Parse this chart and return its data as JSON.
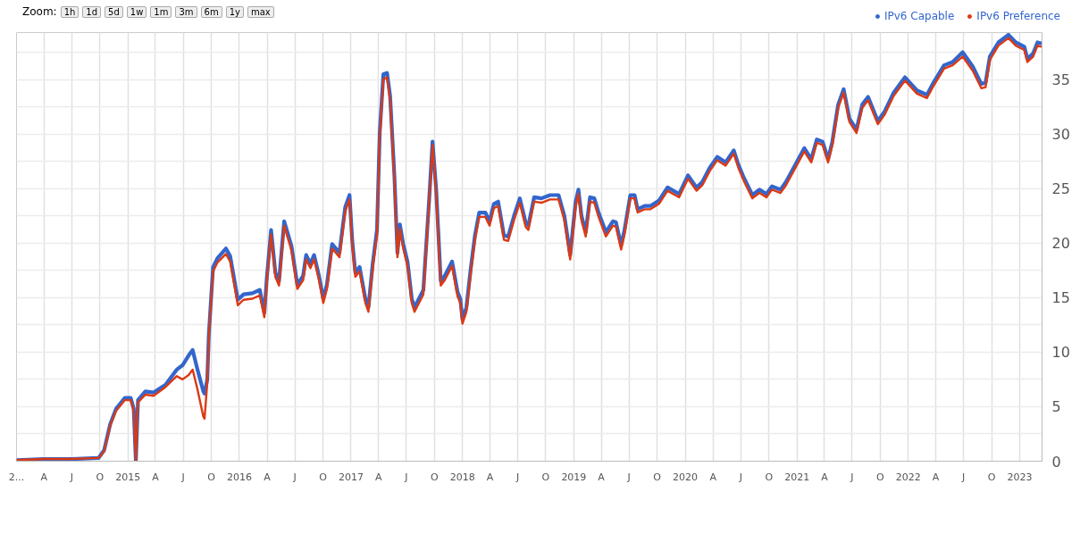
{
  "chart_data": {
    "type": "line",
    "annotations": [
      "Zoom:",
      "1h",
      "1d",
      "5d",
      "1w",
      "1m",
      "3m",
      "6m",
      "1y",
      "max"
    ],
    "x": [
      "2014-01-01",
      "2014-04-01",
      "2014-07-01",
      "2014-09-27",
      "2014-10-15",
      "2014-11-04",
      "2014-11-23",
      "2014-12-22",
      "2015-01-10",
      "2015-01-20",
      "2015-01-27",
      "2015-02-03",
      "2015-02-27",
      "2015-03-26",
      "2015-05-04",
      "2015-06-10",
      "2015-06-29",
      "2015-07-19",
      "2015-08-01",
      "2015-08-16",
      "2015-09-05",
      "2015-09-09",
      "2015-09-18",
      "2015-09-23",
      "2015-10-07",
      "2015-10-21",
      "2015-11-18",
      "2015-12-02",
      "2015-12-27",
      "2016-01-15",
      "2016-02-13",
      "2016-03-08",
      "2016-03-23",
      "2016-03-31",
      "2016-04-14",
      "2016-04-28",
      "2016-05-10",
      "2016-05-27",
      "2016-06-20",
      "2016-07-09",
      "2016-07-28",
      "2016-08-07",
      "2016-08-21",
      "2016-09-02",
      "2016-09-18",
      "2016-10-02",
      "2016-10-14",
      "2016-10-31",
      "2016-11-24",
      "2016-12-13",
      "2016-12-27",
      "2017-01-05",
      "2017-01-15",
      "2017-01-29",
      "2017-02-17",
      "2017-02-27",
      "2017-03-13",
      "2017-03-27",
      "2017-04-05",
      "2017-04-17",
      "2017-04-29",
      "2017-05-09",
      "2017-05-23",
      "2017-06-02",
      "2017-06-10",
      "2017-06-21",
      "2017-07-05",
      "2017-07-19",
      "2017-07-28",
      "2017-08-26",
      "2017-09-14",
      "2017-09-25",
      "2017-10-07",
      "2017-10-22",
      "2017-11-04",
      "2017-11-28",
      "2017-12-16",
      "2017-12-25",
      "2018-01-01",
      "2018-01-14",
      "2018-01-28",
      "2018-02-11",
      "2018-02-25",
      "2018-03-17",
      "2018-03-31",
      "2018-04-14",
      "2018-04-28",
      "2018-05-17",
      "2018-05-31",
      "2018-06-19",
      "2018-07-08",
      "2018-07-27",
      "2018-08-05",
      "2018-08-24",
      "2018-09-17",
      "2018-10-15",
      "2018-11-12",
      "2018-12-01",
      "2018-12-20",
      "2019-01-07",
      "2019-01-16",
      "2019-01-26",
      "2019-02-09",
      "2019-02-23",
      "2019-03-09",
      "2019-03-23",
      "2019-04-16",
      "2019-05-09",
      "2019-05-19",
      "2019-06-05",
      "2019-06-16",
      "2019-07-05",
      "2019-07-19",
      "2019-07-29",
      "2019-08-21",
      "2019-09-09",
      "2019-10-07",
      "2019-11-04",
      "2019-12-12",
      "2020-01-10",
      "2020-02-07",
      "2020-02-26",
      "2020-03-21",
      "2020-04-15",
      "2020-05-12",
      "2020-06-08",
      "2020-06-23",
      "2020-07-11",
      "2020-08-08",
      "2020-08-31",
      "2020-09-23",
      "2020-10-11",
      "2020-11-08",
      "2020-11-26",
      "2021-01-02",
      "2021-01-25",
      "2021-02-17",
      "2021-03-07",
      "2021-03-26",
      "2021-04-13",
      "2021-04-27",
      "2021-05-16",
      "2021-06-03",
      "2021-06-22",
      "2021-07-15",
      "2021-08-03",
      "2021-08-22",
      "2021-09-23",
      "2021-10-16",
      "2021-11-14",
      "2021-12-21",
      "2022-01-29",
      "2022-03-03",
      "2022-03-22",
      "2022-04-28",
      "2022-05-26",
      "2022-06-28",
      "2022-07-31",
      "2022-08-28",
      "2022-09-11",
      "2022-09-25",
      "2022-10-23",
      "2022-11-25",
      "2022-12-19",
      "2023-01-16",
      "2023-01-26",
      "2023-02-14",
      "2023-02-28",
      "2023-03-14"
    ],
    "series": [
      {
        "name": "IPv6 Capable",
        "color": "#3366cc",
        "values": [
          0.1,
          0.2,
          0.2,
          0.3,
          1.0,
          3.4,
          4.8,
          5.8,
          5.8,
          4.8,
          0,
          5.6,
          6.4,
          6.3,
          7.0,
          8.4,
          8.8,
          9.7,
          10.2,
          8.5,
          6.4,
          6.2,
          7.5,
          11.6,
          17.8,
          18.6,
          19.5,
          18.8,
          14.8,
          15.3,
          15.4,
          15.7,
          13.6,
          16.8,
          21.2,
          17.3,
          16.5,
          22.0,
          19.7,
          16.2,
          17.0,
          18.9,
          18.1,
          18.9,
          17.0,
          14.9,
          16.2,
          19.9,
          19.1,
          23.3,
          24.4,
          20.2,
          17.3,
          17.8,
          14.9,
          14.1,
          18.1,
          21.2,
          30.1,
          35.5,
          35.6,
          33.5,
          26.2,
          19.1,
          21.7,
          19.9,
          18.3,
          14.9,
          14.1,
          15.7,
          24.0,
          29.3,
          24.9,
          16.5,
          17.0,
          18.3,
          15.5,
          14.9,
          13.0,
          14.1,
          17.6,
          20.7,
          22.8,
          22.8,
          22.0,
          23.6,
          23.8,
          20.7,
          20.6,
          22.5,
          24.1,
          21.9,
          21.6,
          24.2,
          24.1,
          24.4,
          24.4,
          22.5,
          18.9,
          23.8,
          24.9,
          22.5,
          21.0,
          24.2,
          24.1,
          22.8,
          21.0,
          22.0,
          21.9,
          19.8,
          21.2,
          24.4,
          24.4,
          23.1,
          23.4,
          23.4,
          23.9,
          25.1,
          24.5,
          26.2,
          25.1,
          25.6,
          26.9,
          27.9,
          27.4,
          28.5,
          27.2,
          26.0,
          24.4,
          24.9,
          24.5,
          25.2,
          24.9,
          25.6,
          27.5,
          28.7,
          27.7,
          29.5,
          29.3,
          27.7,
          29.3,
          32.7,
          34.1,
          31.4,
          30.4,
          32.7,
          33.4,
          31.2,
          32.1,
          33.8,
          35.2,
          34.0,
          33.6,
          34.6,
          36.3,
          36.6,
          37.5,
          36.2,
          34.6,
          34.7,
          37.1,
          38.4,
          39.1,
          38.4,
          38.0,
          36.9,
          37.4,
          38.4,
          38.3
        ]
      },
      {
        "name": "IPv6 Preference",
        "color": "#dc3912",
        "values": [
          0.1,
          0.2,
          0.2,
          0.3,
          0.9,
          3.3,
          4.6,
          5.6,
          5.6,
          4.6,
          0,
          5.4,
          6.1,
          6.0,
          6.8,
          7.8,
          7.5,
          7.9,
          8.4,
          6.7,
          4.1,
          3.9,
          7.2,
          11.4,
          17.4,
          18.2,
          19.0,
          18.3,
          14.3,
          14.8,
          14.9,
          15.2,
          13.2,
          16.4,
          20.8,
          16.9,
          16.1,
          21.6,
          19.3,
          15.8,
          16.6,
          18.5,
          17.7,
          18.5,
          16.6,
          14.5,
          15.8,
          19.5,
          18.7,
          22.9,
          24.0,
          19.8,
          16.9,
          17.4,
          14.5,
          13.7,
          17.7,
          20.8,
          29.7,
          35.0,
          35.2,
          33.1,
          25.8,
          18.7,
          21.3,
          19.5,
          17.9,
          14.5,
          13.7,
          15.3,
          23.7,
          29.0,
          24.5,
          16.1,
          16.6,
          17.9,
          15.1,
          14.5,
          12.6,
          13.7,
          17.2,
          20.3,
          22.4,
          22.4,
          21.6,
          23.2,
          23.4,
          20.3,
          20.2,
          22.1,
          23.7,
          21.5,
          21.2,
          23.8,
          23.7,
          24.0,
          24.0,
          22.1,
          18.5,
          23.4,
          24.5,
          22.1,
          20.6,
          23.8,
          23.7,
          22.4,
          20.6,
          21.6,
          21.5,
          19.4,
          20.8,
          24.1,
          24.1,
          22.8,
          23.1,
          23.1,
          23.6,
          24.8,
          24.2,
          25.9,
          24.8,
          25.3,
          26.6,
          27.6,
          27.1,
          28.2,
          26.9,
          25.7,
          24.1,
          24.6,
          24.2,
          24.9,
          24.6,
          25.3,
          27.2,
          28.4,
          27.4,
          29.2,
          29.0,
          27.4,
          29.0,
          32.4,
          33.8,
          31.1,
          30.1,
          32.4,
          33.1,
          30.9,
          31.8,
          33.5,
          34.9,
          33.7,
          33.3,
          34.3,
          36.0,
          36.3,
          37.1,
          35.8,
          34.2,
          34.3,
          36.8,
          38.1,
          38.8,
          38.1,
          37.7,
          36.6,
          37.1,
          38.1,
          38.0
        ]
      }
    ],
    "xlim": [
      "2014-01-01",
      "2023-03-15"
    ],
    "xticks": [
      {
        "value": "2014-01-01",
        "label": "2..."
      },
      {
        "value": "2014-04-01",
        "label": "A"
      },
      {
        "value": "2014-07-01",
        "label": "J"
      },
      {
        "value": "2014-10-01",
        "label": "O"
      },
      {
        "value": "2015-01-01",
        "label": "2015"
      },
      {
        "value": "2015-04-01",
        "label": "A"
      },
      {
        "value": "2015-07-01",
        "label": "J"
      },
      {
        "value": "2015-10-01",
        "label": "O"
      },
      {
        "value": "2016-01-01",
        "label": "2016"
      },
      {
        "value": "2016-04-01",
        "label": "A"
      },
      {
        "value": "2016-07-01",
        "label": "J"
      },
      {
        "value": "2016-10-01",
        "label": "O"
      },
      {
        "value": "2017-01-01",
        "label": "2017"
      },
      {
        "value": "2017-04-01",
        "label": "A"
      },
      {
        "value": "2017-07-01",
        "label": "J"
      },
      {
        "value": "2017-10-01",
        "label": "O"
      },
      {
        "value": "2018-01-01",
        "label": "2018"
      },
      {
        "value": "2018-04-01",
        "label": "A"
      },
      {
        "value": "2018-07-01",
        "label": "J"
      },
      {
        "value": "2018-10-01",
        "label": "O"
      },
      {
        "value": "2019-01-01",
        "label": "2019"
      },
      {
        "value": "2019-04-01",
        "label": "A"
      },
      {
        "value": "2019-07-01",
        "label": "J"
      },
      {
        "value": "2019-10-01",
        "label": "O"
      },
      {
        "value": "2020-01-01",
        "label": "2020"
      },
      {
        "value": "2020-04-01",
        "label": "A"
      },
      {
        "value": "2020-07-01",
        "label": "J"
      },
      {
        "value": "2020-10-01",
        "label": "O"
      },
      {
        "value": "2021-01-01",
        "label": "2021"
      },
      {
        "value": "2021-04-01",
        "label": "A"
      },
      {
        "value": "2021-07-01",
        "label": "J"
      },
      {
        "value": "2021-10-01",
        "label": "O"
      },
      {
        "value": "2022-01-01",
        "label": "2022"
      },
      {
        "value": "2022-04-01",
        "label": "A"
      },
      {
        "value": "2022-07-01",
        "label": "J"
      },
      {
        "value": "2022-10-01",
        "label": "O"
      },
      {
        "value": "2023-01-01",
        "label": "2023"
      }
    ],
    "ylim": [
      0,
      39.3
    ],
    "yticks": [
      0,
      {
        "value": 2.5,
        "label": null
      },
      5,
      {
        "value": 7.5,
        "label": null
      },
      10,
      {
        "value": 12.5,
        "label": null
      },
      15,
      {
        "value": 17.5,
        "label": null
      },
      20,
      {
        "value": 22.5,
        "label": null
      },
      25,
      {
        "value": 27.5,
        "label": null
      },
      30,
      {
        "value": 32.5,
        "label": null
      },
      35,
      {
        "value": 37.5,
        "label": null
      }
    ],
    "grid": true,
    "legend": "top right",
    "line_style": "solid",
    "marker": "none"
  }
}
